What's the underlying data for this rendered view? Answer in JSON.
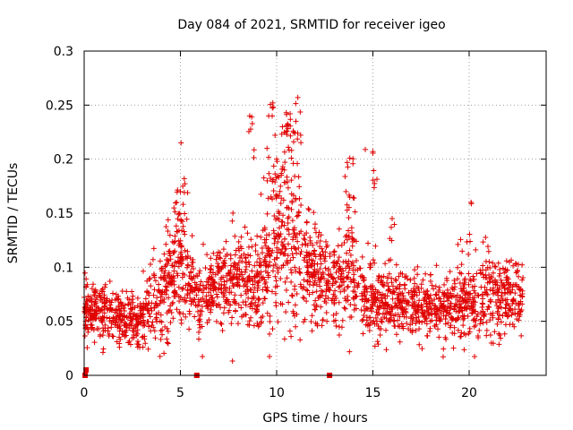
{
  "chart_data": {
    "type": "scatter",
    "title": "Day 084 of 2021, SRMTID for receiver igeo",
    "xlabel": "GPS time / hours",
    "ylabel": "SRMTID / TECUs",
    "xlim": [
      0,
      24
    ],
    "ylim": [
      0,
      0.3
    ],
    "grid": true,
    "marker": "+",
    "xticks": [
      {
        "value": 0,
        "label": "0"
      },
      {
        "value": 5,
        "label": "5"
      },
      {
        "value": 10,
        "label": "10"
      },
      {
        "value": 15,
        "label": "15"
      },
      {
        "value": 20,
        "label": "20"
      }
    ],
    "yticks": [
      {
        "value": 0,
        "label": "0"
      },
      {
        "value": 0.05,
        "label": "0.05"
      },
      {
        "value": 0.1,
        "label": "0.1"
      },
      {
        "value": 0.15,
        "label": "0.15"
      },
      {
        "value": 0.2,
        "label": "0.2"
      },
      {
        "value": 0.25,
        "label": "0.25"
      },
      {
        "value": 0.3,
        "label": "0.3"
      }
    ],
    "series": [
      {
        "name": "SRMTID",
        "color": "#e00000",
        "profile": [
          {
            "t": 0.0,
            "mean": 0.062,
            "spread": 0.014
          },
          {
            "t": 1.0,
            "mean": 0.058,
            "spread": 0.013
          },
          {
            "t": 2.0,
            "mean": 0.05,
            "spread": 0.012
          },
          {
            "t": 3.0,
            "mean": 0.052,
            "spread": 0.013
          },
          {
            "t": 4.0,
            "mean": 0.075,
            "spread": 0.022
          },
          {
            "t": 5.0,
            "mean": 0.1,
            "spread": 0.03
          },
          {
            "t": 5.5,
            "mean": 0.08,
            "spread": 0.02
          },
          {
            "t": 6.0,
            "mean": 0.068,
            "spread": 0.016
          },
          {
            "t": 7.0,
            "mean": 0.082,
            "spread": 0.018
          },
          {
            "t": 8.0,
            "mean": 0.088,
            "spread": 0.02
          },
          {
            "t": 9.0,
            "mean": 0.085,
            "spread": 0.02
          },
          {
            "t": 10.0,
            "mean": 0.118,
            "spread": 0.035
          },
          {
            "t": 11.0,
            "mean": 0.12,
            "spread": 0.035
          },
          {
            "t": 12.0,
            "mean": 0.09,
            "spread": 0.02
          },
          {
            "t": 13.0,
            "mean": 0.085,
            "spread": 0.02
          },
          {
            "t": 14.0,
            "mean": 0.09,
            "spread": 0.03
          },
          {
            "t": 15.0,
            "mean": 0.065,
            "spread": 0.016
          },
          {
            "t": 16.0,
            "mean": 0.068,
            "spread": 0.016
          },
          {
            "t": 17.0,
            "mean": 0.066,
            "spread": 0.015
          },
          {
            "t": 18.0,
            "mean": 0.064,
            "spread": 0.015
          },
          {
            "t": 19.0,
            "mean": 0.062,
            "spread": 0.015
          },
          {
            "t": 20.0,
            "mean": 0.066,
            "spread": 0.016
          },
          {
            "t": 21.0,
            "mean": 0.075,
            "spread": 0.018
          },
          {
            "t": 22.0,
            "mean": 0.072,
            "spread": 0.017
          },
          {
            "t": 22.8,
            "mean": 0.07,
            "spread": 0.016
          }
        ],
        "highlights": [
          {
            "x": 8.6,
            "y": 0.24
          },
          {
            "x": 9.5,
            "y": 0.21
          },
          {
            "x": 9.8,
            "y": 0.252
          },
          {
            "x": 10.3,
            "y": 0.23
          },
          {
            "x": 10.5,
            "y": 0.243
          },
          {
            "x": 10.7,
            "y": 0.242
          },
          {
            "x": 11.0,
            "y": 0.235
          },
          {
            "x": 11.1,
            "y": 0.257
          },
          {
            "x": 10.0,
            "y": 0.2
          },
          {
            "x": 10.4,
            "y": 0.19
          },
          {
            "x": 10.2,
            "y": 0.175
          },
          {
            "x": 13.8,
            "y": 0.201
          },
          {
            "x": 15.0,
            "y": 0.207
          },
          {
            "x": 13.6,
            "y": 0.17
          },
          {
            "x": 5.0,
            "y": 0.17
          },
          {
            "x": 5.2,
            "y": 0.182
          },
          {
            "x": 4.8,
            "y": 0.16
          },
          {
            "x": 20.1,
            "y": 0.16
          },
          {
            "x": 16.0,
            "y": 0.145
          },
          {
            "x": 12.0,
            "y": 0.14
          }
        ],
        "zero_markers": [
          {
            "x": 0.05,
            "y": 0.0
          },
          {
            "x": 5.85,
            "y": 0.0
          },
          {
            "x": 12.75,
            "y": 0.0
          },
          {
            "x": 0.1,
            "y": 0.005
          }
        ]
      }
    ]
  }
}
